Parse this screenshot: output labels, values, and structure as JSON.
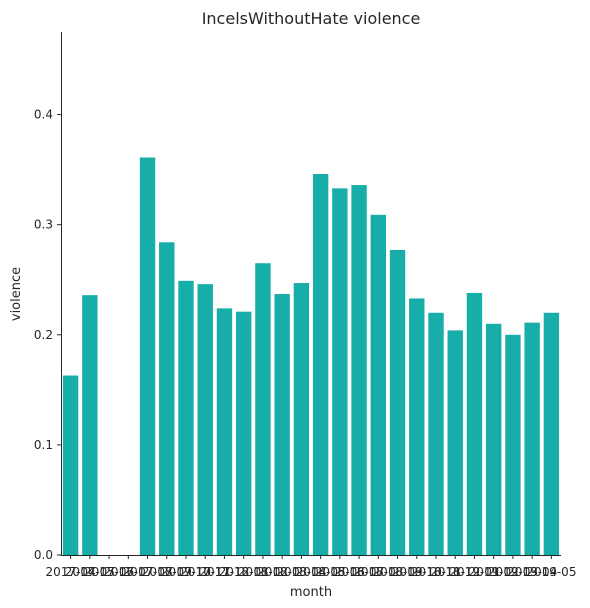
{
  "chart_data": {
    "type": "bar",
    "title": "IncelsWithoutHate violence",
    "xlabel": "month",
    "ylabel": "violence",
    "color": "#17ada8",
    "grid": false,
    "ylim": [
      0,
      0.475
    ],
    "yticks": [
      "0.0",
      "0.1",
      "0.2",
      "0.3",
      "0.4"
    ],
    "categories": [
      "2017-04",
      "2017-05",
      "2017-06",
      "2017-07",
      "2017-08",
      "2017-09",
      "2017-10",
      "2017-11",
      "2017-12",
      "2018-01",
      "2018-02",
      "2018-03",
      "2018-04",
      "2018-05",
      "2018-06",
      "2018-07",
      "2018-08",
      "2018-09",
      "2018-10",
      "2018-11",
      "2018-12",
      "2019-01",
      "2019-02",
      "2019-03",
      "2019-04",
      "2019-05"
    ],
    "values": [
      0.163,
      0.236,
      null,
      null,
      0.361,
      0.284,
      0.249,
      0.246,
      0.224,
      0.221,
      0.265,
      0.237,
      0.247,
      0.346,
      0.333,
      0.336,
      0.309,
      0.277,
      0.233,
      0.22,
      0.204,
      0.238,
      0.21,
      0.2,
      0.211,
      0.22
    ]
  }
}
